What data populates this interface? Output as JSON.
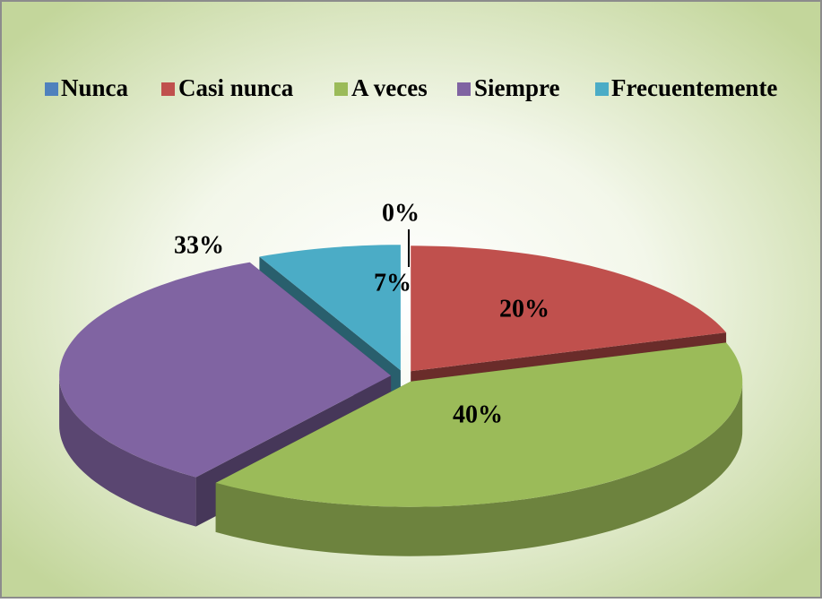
{
  "chart_data": {
    "type": "pie",
    "categories": [
      "Nunca",
      "Casi nunca",
      "A veces",
      "Siempre",
      "Frecuentemente"
    ],
    "values": [
      0,
      20,
      40,
      33,
      7
    ],
    "value_labels": [
      "0%",
      "20%",
      "40%",
      "33%",
      "7%"
    ],
    "colors": [
      "#4f81bd",
      "#c0504d",
      "#9bbb59",
      "#8064a2",
      "#4bacc6"
    ],
    "legend": "top"
  }
}
